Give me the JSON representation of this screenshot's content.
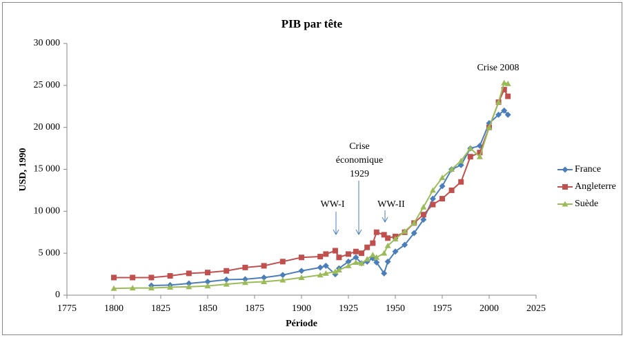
{
  "chart_data": {
    "type": "line",
    "title": "PIB par tête",
    "x_label": "Période",
    "y_label": "USD, 1990",
    "x": [
      1800,
      1810,
      1820,
      1830,
      1840,
      1850,
      1860,
      1870,
      1880,
      1890,
      1900,
      1910,
      1913,
      1918,
      1920,
      1925,
      1929,
      1932,
      1935,
      1938,
      1940,
      1944,
      1946,
      1950,
      1955,
      1960,
      1965,
      1970,
      1975,
      1980,
      1985,
      1990,
      1995,
      2000,
      2005,
      2008,
      2010
    ],
    "series": [
      {
        "name": "France",
        "color": "#4a7ebb",
        "marker": "diamond",
        "values": [
          null,
          null,
          1150,
          1200,
          1400,
          1600,
          1850,
          1900,
          2100,
          2400,
          2900,
          3300,
          3500,
          2500,
          3200,
          4000,
          4500,
          3800,
          4000,
          4400,
          3900,
          2600,
          4000,
          5200,
          6000,
          7400,
          9000,
          11500,
          13000,
          15000,
          15500,
          17500,
          17800,
          20500,
          21500,
          22000,
          21500
        ]
      },
      {
        "name": "Angleterre",
        "color": "#c0504d",
        "marker": "square",
        "values": [
          2100,
          2100,
          2100,
          2300,
          2600,
          2700,
          2900,
          3300,
          3500,
          4000,
          4500,
          4600,
          4900,
          5300,
          4500,
          4900,
          5200,
          5000,
          5700,
          6200,
          7500,
          7200,
          6800,
          7000,
          7500,
          8600,
          9600,
          10800,
          11500,
          12500,
          13500,
          16500,
          17000,
          20000,
          23000,
          24500,
          23700
        ]
      },
      {
        "name": "Suède",
        "color": "#9bbb59",
        "marker": "triangle",
        "values": [
          800,
          850,
          850,
          950,
          1000,
          1100,
          1300,
          1500,
          1600,
          1800,
          2100,
          2400,
          2600,
          2800,
          3000,
          3500,
          3900,
          3800,
          4300,
          4800,
          4500,
          5000,
          5900,
          6700,
          7600,
          8600,
          10500,
          12500,
          14000,
          15000,
          16000,
          17500,
          16500,
          20000,
          23000,
          25300,
          25200
        ]
      }
    ],
    "xlim": [
      1775,
      2025
    ],
    "xticks": [
      1775,
      1800,
      1825,
      1850,
      1875,
      1900,
      1925,
      1950,
      1975,
      2000,
      2025
    ],
    "ylim": [
      0,
      30000
    ],
    "yticks": [
      0,
      {
        "value": 5000,
        "label": "5 000"
      },
      {
        "value": 10000,
        "label": "10 000"
      },
      {
        "value": 15000,
        "label": "15 000"
      },
      {
        "value": 20000,
        "label": "20 000"
      },
      {
        "value": 25000,
        "label": "25 000"
      },
      {
        "value": 30000,
        "label": "30 000"
      }
    ],
    "grid": false,
    "legend": "right",
    "annotations": [
      [
        "WW-I"
      ],
      [
        "Crise",
        "économique",
        "1929"
      ],
      [
        "WW-II"
      ],
      [
        "Crise 2008"
      ]
    ]
  }
}
